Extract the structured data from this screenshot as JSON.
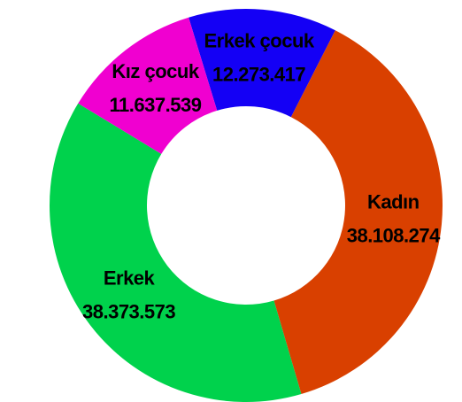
{
  "chart_data": {
    "type": "donut",
    "categories": [
      "Erkek çocuk",
      "Kadın",
      "Erkek",
      "Kız çocuk"
    ],
    "values": [
      12273417,
      38108274,
      38373573,
      11637539
    ],
    "value_labels": [
      "12.273.417",
      "38.108.274",
      "38.373.573",
      "11.637.539"
    ],
    "colors": [
      "#1400f5",
      "#d94000",
      "#00d24c",
      "#f000d0"
    ]
  }
}
